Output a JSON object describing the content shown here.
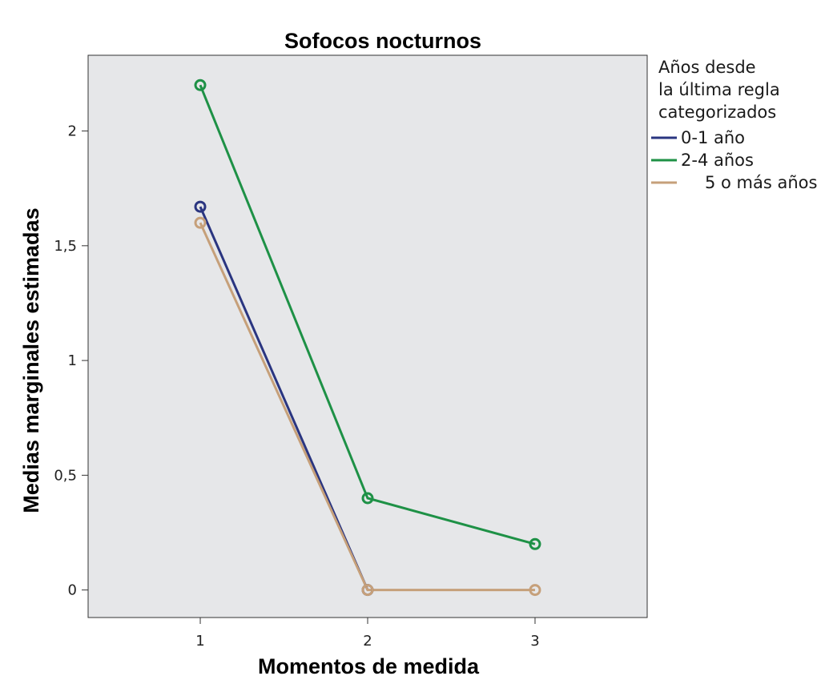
{
  "chart_data": {
    "type": "line",
    "title": "Sofocos nocturnos",
    "xlabel": "Momentos de medida",
    "ylabel": "Medias marginales estimadas",
    "x": [
      1,
      2,
      3
    ],
    "x_tick_labels": [
      "1",
      "2",
      "3"
    ],
    "xlim": [
      0.33,
      3.67
    ],
    "ylim": [
      -0.12,
      2.33
    ],
    "y_ticks": [
      0,
      0.5,
      1,
      1.5,
      2
    ],
    "y_tick_labels": [
      "0",
      "0,5",
      "1",
      "1,5",
      "2"
    ],
    "grid": false,
    "legend": {
      "title_lines": [
        "Años desde",
        "la última regla",
        "categorizados"
      ],
      "placement": "right"
    },
    "plot_background": "#e6e7e9",
    "series": [
      {
        "name": "0-1 año",
        "color": "#2a3580",
        "values": [
          1.67,
          0.0,
          null
        ]
      },
      {
        "name": "2-4 años",
        "color": "#1e9146",
        "values": [
          2.2,
          0.4,
          0.2
        ]
      },
      {
        "name": "5 o más años",
        "color": "#c6a07a",
        "values": [
          1.6,
          0.0,
          0.0
        ]
      }
    ]
  }
}
